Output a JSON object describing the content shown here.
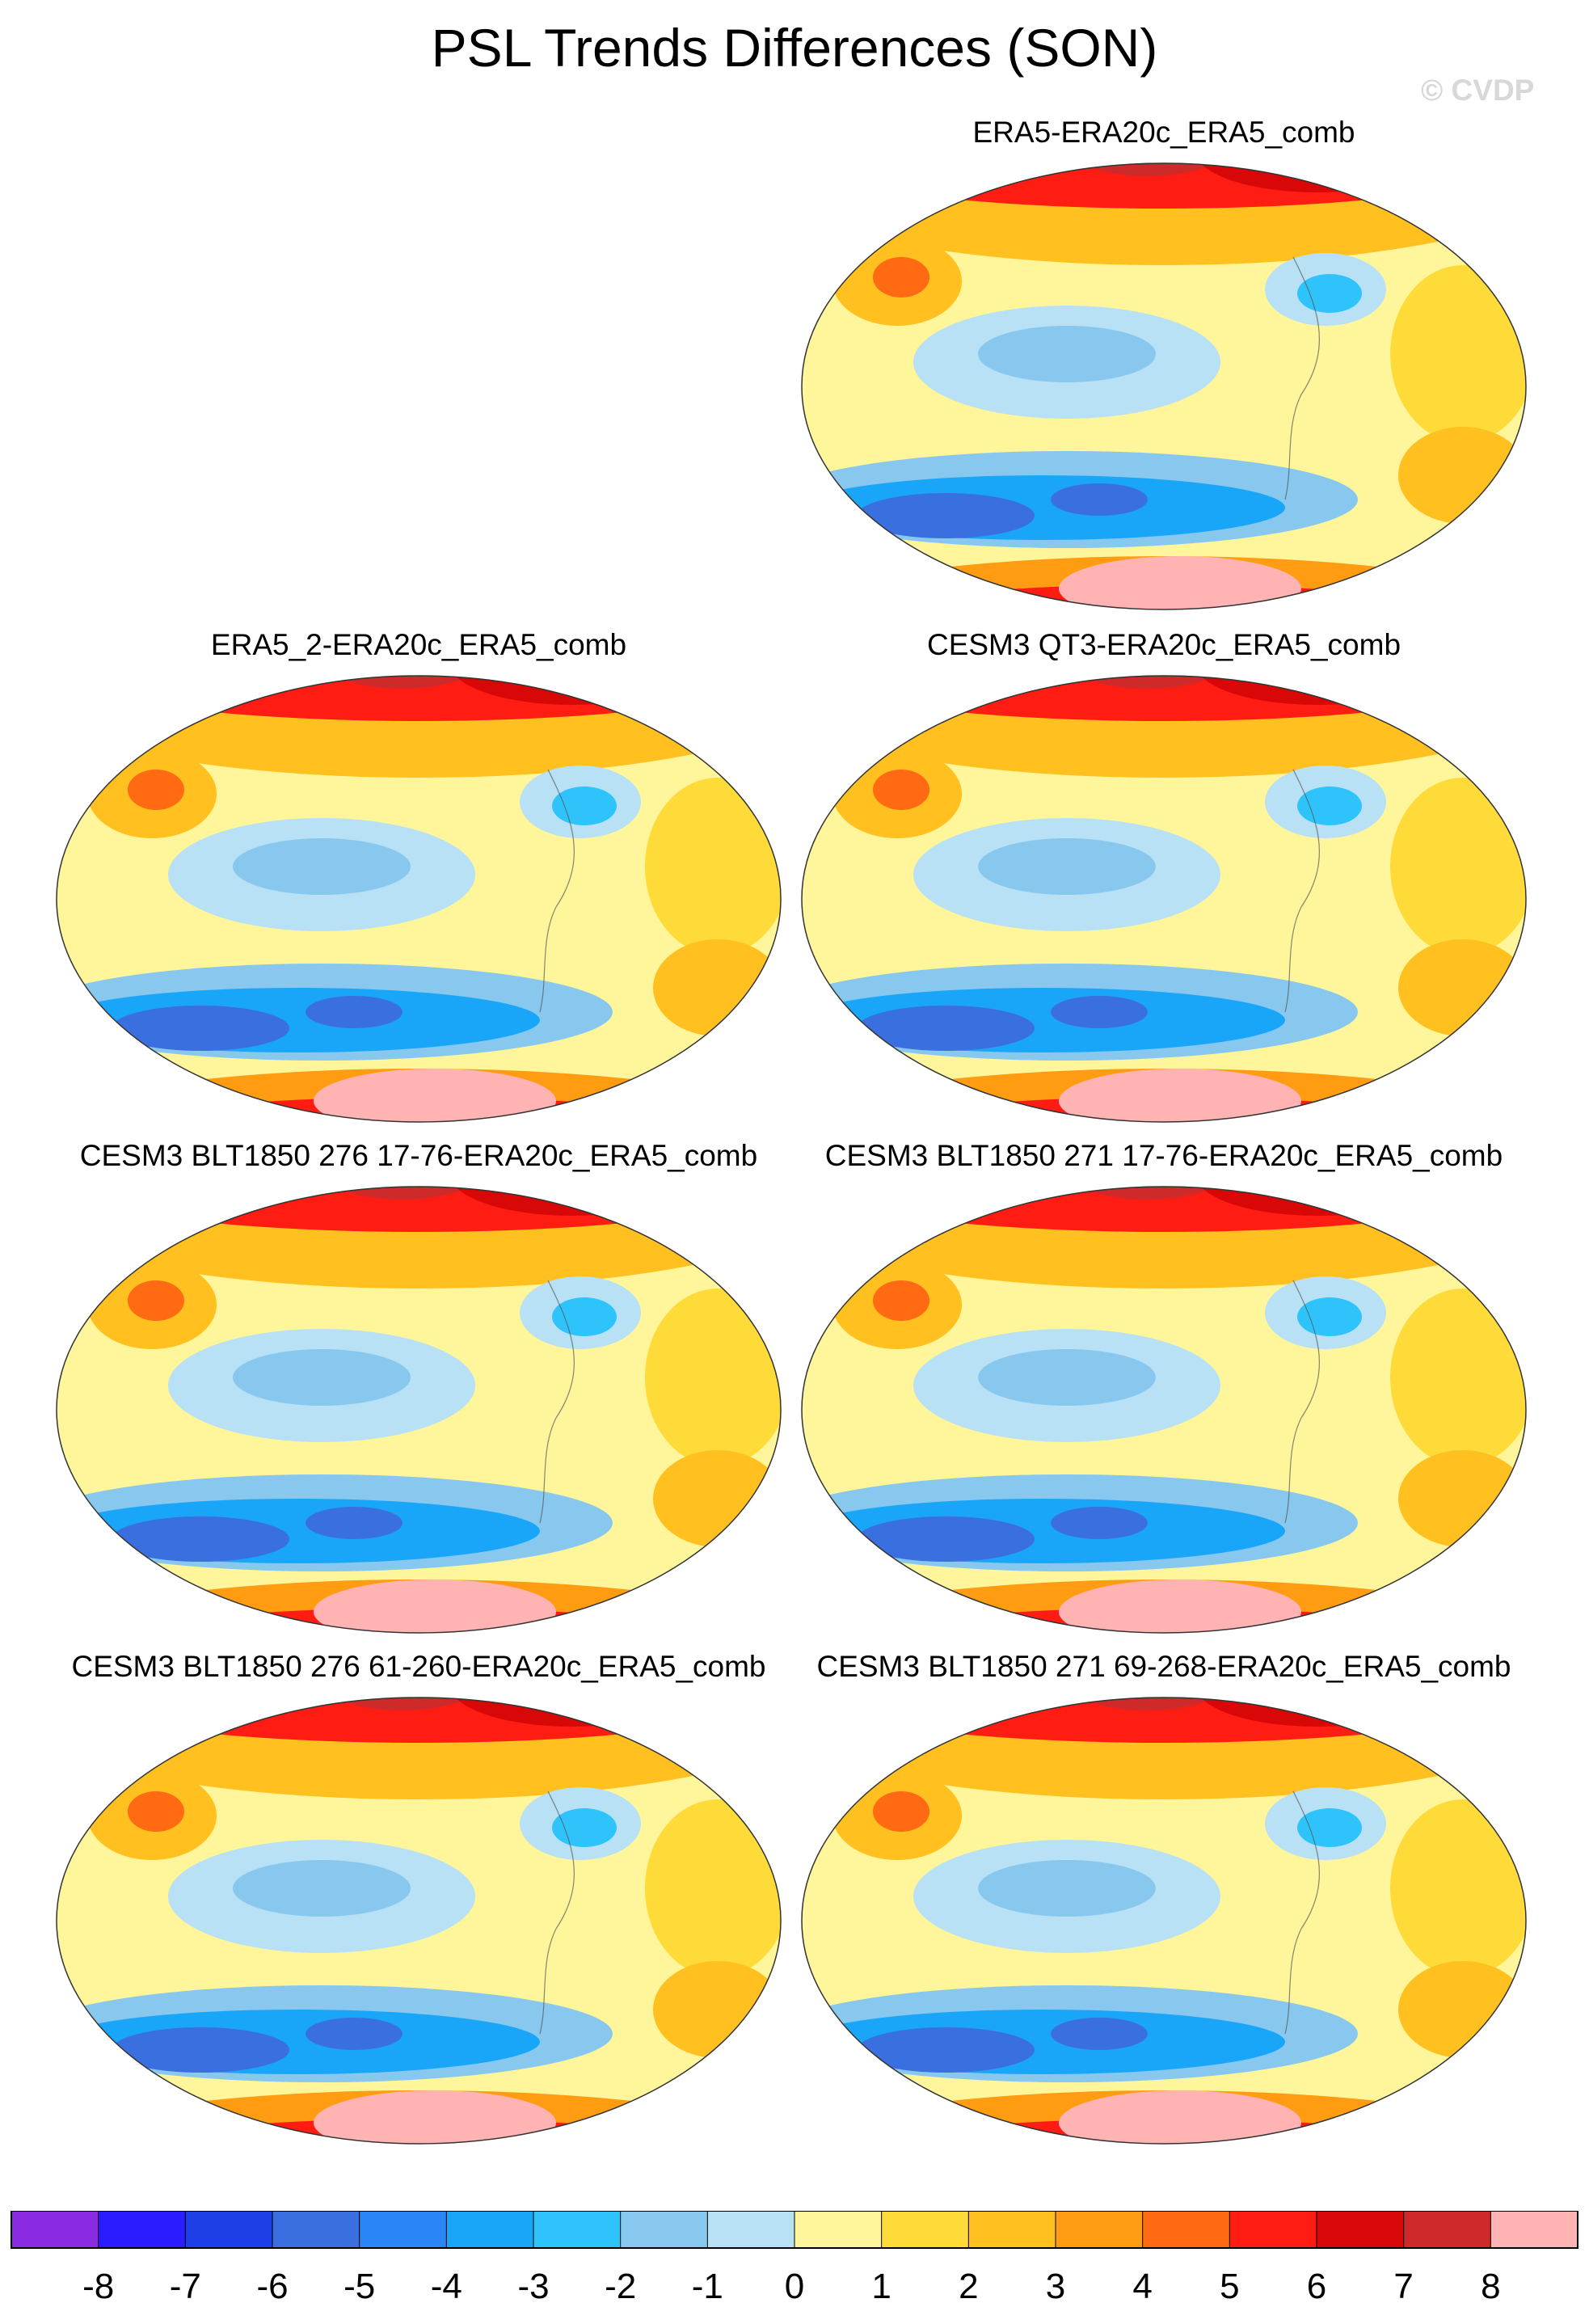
{
  "title": "PSL Trends Differences (SON)",
  "watermark": "© CVDP",
  "panels": [
    {
      "label": "ERA5-ERA20c_ERA5_comb"
    },
    {
      "label": "ERA5_2-ERA20c_ERA5_comb"
    },
    {
      "label": "CESM3 QT3-ERA20c_ERA5_comb"
    },
    {
      "label": "CESM3 BLT1850 276 17-76-ERA20c_ERA5_comb"
    },
    {
      "label": "CESM3 BLT1850 271 17-76-ERA20c_ERA5_comb"
    },
    {
      "label": "CESM3 BLT1850 276 61-260-ERA20c_ERA5_comb"
    },
    {
      "label": "CESM3 BLT1850 271 69-268-ERA20c_ERA5_comb"
    }
  ],
  "colorbar": {
    "colors": [
      "#8a2be2",
      "#2b1bff",
      "#1e3fe8",
      "#3a6fe0",
      "#2a86f5",
      "#1aa6f8",
      "#2ec3fb",
      "#88c8ef",
      "#b8e1f5",
      "#fff59a",
      "#ffdb3a",
      "#ffc020",
      "#ff9c12",
      "#ff6a12",
      "#ff1c12",
      "#d80808",
      "#cf2a2a",
      "#ffb3b3"
    ],
    "tick_labels": [
      "-8",
      "-7",
      "-6",
      "-5",
      "-4",
      "-3",
      "-2",
      "-1",
      "0",
      "1",
      "2",
      "3",
      "4",
      "5",
      "6",
      "7",
      "8"
    ]
  }
}
